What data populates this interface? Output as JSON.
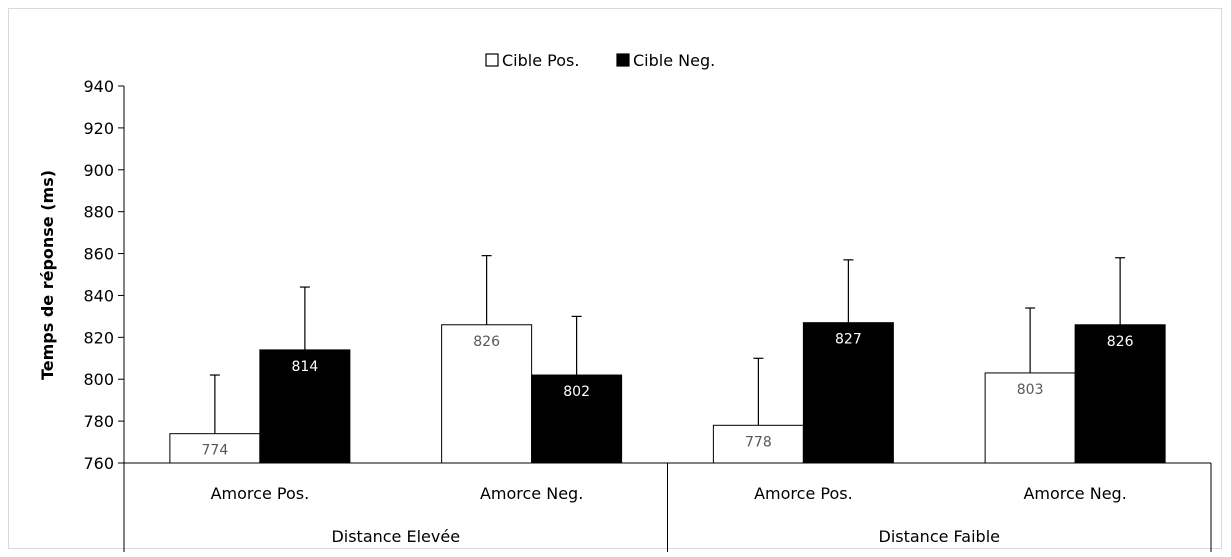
{
  "chart_data": {
    "type": "bar",
    "ylabel": "Temps de réponse (ms)",
    "ylim": [
      760,
      940
    ],
    "yticks": [
      760,
      780,
      800,
      820,
      840,
      860,
      880,
      900,
      920,
      940
    ],
    "groups": [
      "Distance Elevée",
      "Distance Faible"
    ],
    "categories": [
      "Amorce Pos.",
      "Amorce Neg.",
      "Amorce Pos.",
      "Amorce Neg."
    ],
    "legend_position": "top",
    "series": [
      {
        "name": "Cible Pos.",
        "fill": "#ffffff",
        "label_color": "#595959",
        "values": [
          774,
          826,
          778,
          803
        ],
        "error": [
          28,
          33,
          32,
          31
        ]
      },
      {
        "name": "Cible Neg.",
        "fill": "#000000",
        "label_color": "#ffffff",
        "values": [
          814,
          802,
          827,
          826
        ],
        "error": [
          30,
          28,
          30,
          32
        ]
      }
    ]
  }
}
